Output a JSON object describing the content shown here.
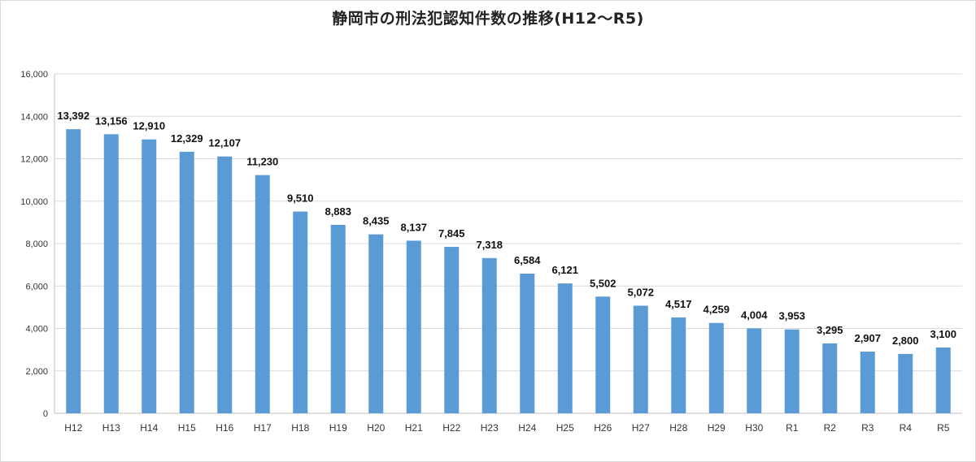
{
  "chart_data": {
    "type": "bar",
    "title": "静岡市の刑法犯認知件数の推移(H12〜R5)",
    "xlabel": "",
    "ylabel": "",
    "ylim": [
      0,
      16000
    ],
    "yticks": [
      "0",
      "2,000",
      "4,000",
      "6,000",
      "8,000",
      "10,000",
      "12,000",
      "14,000",
      "16,000"
    ],
    "categories": [
      "H12",
      "H13",
      "H14",
      "H15",
      "H16",
      "H17",
      "H18",
      "H19",
      "H20",
      "H21",
      "H22",
      "H23",
      "H24",
      "H25",
      "H26",
      "H27",
      "H28",
      "H29",
      "H30",
      "R1",
      "R2",
      "R3",
      "R4",
      "R5"
    ],
    "values": [
      13392,
      13156,
      12910,
      12329,
      12107,
      11230,
      9510,
      8883,
      8435,
      8137,
      7845,
      7318,
      6584,
      6121,
      5502,
      5072,
      4517,
      4259,
      4004,
      3953,
      3295,
      2907,
      2800,
      3100
    ],
    "data_labels": [
      "13,392",
      "13,156",
      "12,910",
      "12,329",
      "12,107",
      "11,230",
      "9,510",
      "8,883",
      "8,435",
      "8,137",
      "7,845",
      "7,318",
      "6,584",
      "6,121",
      "5,502",
      "5,072",
      "4,517",
      "4,259",
      "4,004",
      "3,953",
      "3,295",
      "2,907",
      "2,800",
      "3,100"
    ],
    "bar_color": "#5b9bd5",
    "grid": true,
    "legend": "none"
  }
}
